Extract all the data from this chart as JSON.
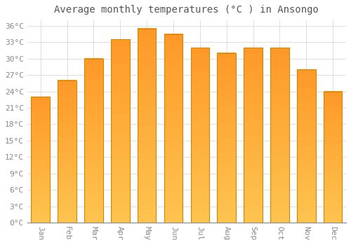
{
  "title": "Average monthly temperatures (°C ) in Ansongo",
  "months": [
    "Jan",
    "Feb",
    "Mar",
    "Apr",
    "May",
    "Jun",
    "Jul",
    "Aug",
    "Sep",
    "Oct",
    "Nov",
    "Dec"
  ],
  "values": [
    23.0,
    26.0,
    30.0,
    33.5,
    35.5,
    34.5,
    32.0,
    31.0,
    32.0,
    32.0,
    28.0,
    24.0
  ],
  "bar_color_top": "#FFB300",
  "bar_color_bottom": "#FFD966",
  "bar_edge_color": "#CC8800",
  "background_color": "#FFFFFF",
  "grid_color": "#DDDDDD",
  "ytick_labels": [
    "0°C",
    "3°C",
    "6°C",
    "9°C",
    "12°C",
    "15°C",
    "18°C",
    "21°C",
    "24°C",
    "27°C",
    "30°C",
    "33°C",
    "36°C"
  ],
  "ytick_values": [
    0,
    3,
    6,
    9,
    12,
    15,
    18,
    21,
    24,
    27,
    30,
    33,
    36
  ],
  "ylim": [
    0,
    37
  ],
  "title_fontsize": 10,
  "tick_fontsize": 8,
  "tick_color": "#888888",
  "title_color": "#555555"
}
